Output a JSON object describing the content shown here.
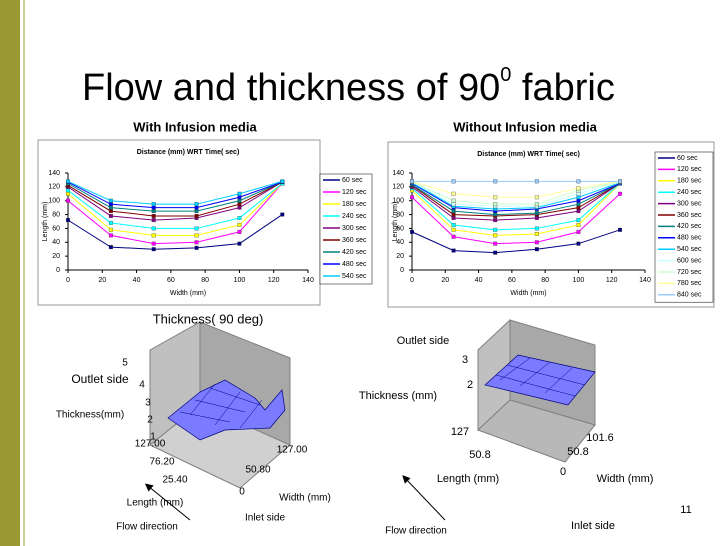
{
  "slide": {
    "title": "Flow and thickness of 90",
    "title_sup": "0",
    "title_end": " fabric",
    "left_heading": "With Infusion media",
    "right_heading": "Without Infusion media",
    "page_number": "11"
  },
  "chart_data": [
    {
      "type": "line",
      "title": "Distance (mm) WRT Time( sec)",
      "xlabel": "Width (mm)",
      "ylabel": "Length (mm)",
      "x": [
        0,
        25,
        50,
        75,
        100,
        125
      ],
      "xlim": [
        0,
        140
      ],
      "xticks": [
        0,
        20,
        40,
        60,
        80,
        100,
        120,
        140
      ],
      "ylim": [
        0,
        140
      ],
      "yticks": [
        0,
        20,
        40,
        60,
        80,
        100,
        120,
        140
      ],
      "series": [
        {
          "name": "60 sec",
          "color": "#000080",
          "values": [
            72,
            33,
            30,
            32,
            38,
            80
          ]
        },
        {
          "name": "120 sec",
          "color": "#ff00ff",
          "values": [
            100,
            50,
            38,
            40,
            55,
            125
          ]
        },
        {
          "name": "180 sec",
          "color": "#ffff00",
          "values": [
            110,
            58,
            50,
            50,
            65,
            125
          ]
        },
        {
          "name": "240 sec",
          "color": "#00ffff",
          "values": [
            115,
            68,
            60,
            60,
            75,
            125
          ]
        },
        {
          "name": "300 sec",
          "color": "#800080",
          "values": [
            120,
            78,
            72,
            75,
            90,
            127
          ]
        },
        {
          "name": "360 sec",
          "color": "#800000",
          "values": [
            122,
            85,
            78,
            78,
            95,
            127
          ]
        },
        {
          "name": "420 sec",
          "color": "#008080",
          "values": [
            125,
            90,
            85,
            85,
            100,
            127
          ]
        },
        {
          "name": "480 sec",
          "color": "#0000ff",
          "values": [
            127,
            95,
            90,
            90,
            105,
            127
          ]
        },
        {
          "name": "540 sec",
          "color": "#00ccff",
          "values": [
            128,
            100,
            95,
            95,
            110,
            128
          ]
        }
      ]
    },
    {
      "type": "line",
      "title": "Distance (mm) WRT Time( sec)",
      "xlabel": "Width (mm)",
      "ylabel": "Length (mm)",
      "x": [
        0,
        25,
        50,
        75,
        100,
        125
      ],
      "xlim": [
        0,
        140
      ],
      "xticks": [
        0,
        20,
        40,
        60,
        80,
        100,
        120,
        140
      ],
      "ylim": [
        0,
        140
      ],
      "yticks": [
        0,
        20,
        40,
        60,
        80,
        100,
        120,
        140
      ],
      "series": [
        {
          "name": "60 sec",
          "color": "#000080",
          "values": [
            55,
            28,
            25,
            30,
            38,
            58
          ]
        },
        {
          "name": "120 sec",
          "color": "#ff00ff",
          "values": [
            105,
            48,
            38,
            40,
            55,
            110
          ]
        },
        {
          "name": "180 sec",
          "color": "#ffff00",
          "values": [
            115,
            58,
            50,
            52,
            65,
            125
          ]
        },
        {
          "name": "240 sec",
          "color": "#00ffff",
          "values": [
            118,
            65,
            58,
            60,
            72,
            125
          ]
        },
        {
          "name": "300 sec",
          "color": "#800080",
          "values": [
            120,
            75,
            72,
            75,
            85,
            125
          ]
        },
        {
          "name": "360 sec",
          "color": "#800000",
          "values": [
            122,
            80,
            78,
            80,
            90,
            125
          ]
        },
        {
          "name": "420 sec",
          "color": "#008080",
          "values": [
            123,
            85,
            80,
            82,
            95,
            125
          ]
        },
        {
          "name": "480 sec",
          "color": "#0000ff",
          "values": [
            125,
            90,
            85,
            88,
            100,
            125
          ]
        },
        {
          "name": "540 sec",
          "color": "#00ccff",
          "values": [
            126,
            92,
            88,
            90,
            105,
            126
          ]
        },
        {
          "name": "600 sec",
          "color": "#ccffff",
          "values": [
            127,
            95,
            92,
            92,
            110,
            127
          ]
        },
        {
          "name": "720 sec",
          "color": "#ccffcc",
          "values": [
            127,
            100,
            95,
            95,
            115,
            127
          ]
        },
        {
          "name": "780 sec",
          "color": "#ffff99",
          "values": [
            128,
            110,
            105,
            105,
            118,
            128
          ]
        },
        {
          "name": "840 sec",
          "color": "#99ccff",
          "values": [
            128,
            128,
            128,
            128,
            128,
            128
          ]
        }
      ]
    }
  ],
  "figures": [
    {
      "title": "Thickness( 90 deg)",
      "labels": [
        "Outlet side",
        "Thickness(mm)",
        "5",
        "4",
        "3",
        "2",
        "1",
        "127.00",
        "76.20",
        "25.40",
        "0",
        "50.80",
        "127.00",
        "Length (mm)",
        "Width (mm)",
        "Inlet side",
        "Flow direction"
      ]
    },
    {
      "labels": [
        "Outlet side",
        "Thickness (mm)",
        "3",
        "2",
        "127",
        "50.8",
        "0",
        "50.8",
        "101.6",
        "Length (mm)",
        "Width (mm)",
        "Inlet side",
        "Flow direction"
      ]
    }
  ]
}
